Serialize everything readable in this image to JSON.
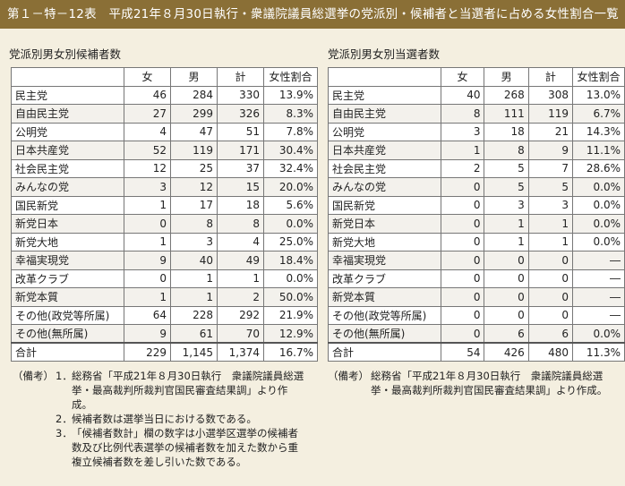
{
  "title": "第１－特－12表　平成21年８月30日執行・衆議院議員総選挙の党派別・候補者と当選者に占める女性割合一覧",
  "left": {
    "heading": "党派別男女別候補者数",
    "columns": [
      "",
      "女",
      "男",
      "計",
      "女性割合"
    ],
    "rows": [
      [
        "民主党",
        "46",
        "284",
        "330",
        "13.9%"
      ],
      [
        "自由民主党",
        "27",
        "299",
        "326",
        "8.3%"
      ],
      [
        "公明党",
        "4",
        "47",
        "51",
        "7.8%"
      ],
      [
        "日本共産党",
        "52",
        "119",
        "171",
        "30.4%"
      ],
      [
        "社会民主党",
        "12",
        "25",
        "37",
        "32.4%"
      ],
      [
        "みんなの党",
        "3",
        "12",
        "15",
        "20.0%"
      ],
      [
        "国民新党",
        "1",
        "17",
        "18",
        "5.6%"
      ],
      [
        "新党日本",
        "0",
        "8",
        "8",
        "0.0%"
      ],
      [
        "新党大地",
        "1",
        "3",
        "4",
        "25.0%"
      ],
      [
        "幸福実現党",
        "9",
        "40",
        "49",
        "18.4%"
      ],
      [
        "改革クラブ",
        "0",
        "1",
        "1",
        "0.0%"
      ],
      [
        "新党本質",
        "1",
        "1",
        "2",
        "50.0%"
      ],
      [
        "その他(政党等所属)",
        "64",
        "228",
        "292",
        "21.9%"
      ],
      [
        "その他(無所属)",
        "9",
        "61",
        "70",
        "12.9%"
      ],
      [
        "合計",
        "229",
        "1,145",
        "1,374",
        "16.7%"
      ]
    ],
    "notes_label": "（備考）",
    "notes": [
      {
        "num": "1．",
        "text": "総務省「平成21年８月30日執行　衆議院議員総選挙・最高裁判所裁判官国民審査結果調」より作成。"
      },
      {
        "num": "2．",
        "text": "候補者数は選挙当日における数である。"
      },
      {
        "num": "3．",
        "text": "「候補者数計」欄の数字は小選挙区選挙の候補者数及び比例代表選挙の候補者数を加えた数から重複立候補者数を差し引いた数である。"
      }
    ]
  },
  "right": {
    "heading": "党派別男女別当選者数",
    "columns": [
      "",
      "女",
      "男",
      "計",
      "女性割合"
    ],
    "rows": [
      [
        "民主党",
        "40",
        "268",
        "308",
        "13.0%"
      ],
      [
        "自由民主党",
        "8",
        "111",
        "119",
        "6.7%"
      ],
      [
        "公明党",
        "3",
        "18",
        "21",
        "14.3%"
      ],
      [
        "日本共産党",
        "1",
        "8",
        "9",
        "11.1%"
      ],
      [
        "社会民主党",
        "2",
        "5",
        "7",
        "28.6%"
      ],
      [
        "みんなの党",
        "0",
        "5",
        "5",
        "0.0%"
      ],
      [
        "国民新党",
        "0",
        "3",
        "3",
        "0.0%"
      ],
      [
        "新党日本",
        "0",
        "1",
        "1",
        "0.0%"
      ],
      [
        "新党大地",
        "0",
        "1",
        "1",
        "0.0%"
      ],
      [
        "幸福実現党",
        "0",
        "0",
        "0",
        "―"
      ],
      [
        "改革クラブ",
        "0",
        "0",
        "0",
        "―"
      ],
      [
        "新党本質",
        "0",
        "0",
        "0",
        "―"
      ],
      [
        "その他(政党等所属)",
        "0",
        "0",
        "0",
        "―"
      ],
      [
        "その他(無所属)",
        "0",
        "6",
        "6",
        "0.0%"
      ],
      [
        "合計",
        "54",
        "426",
        "480",
        "11.3%"
      ]
    ],
    "notes_label": "（備考）",
    "note_text": "総務省「平成21年８月30日執行　衆議院議員総選挙・最高裁判所裁判官国民審査結果調」より作成。"
  }
}
